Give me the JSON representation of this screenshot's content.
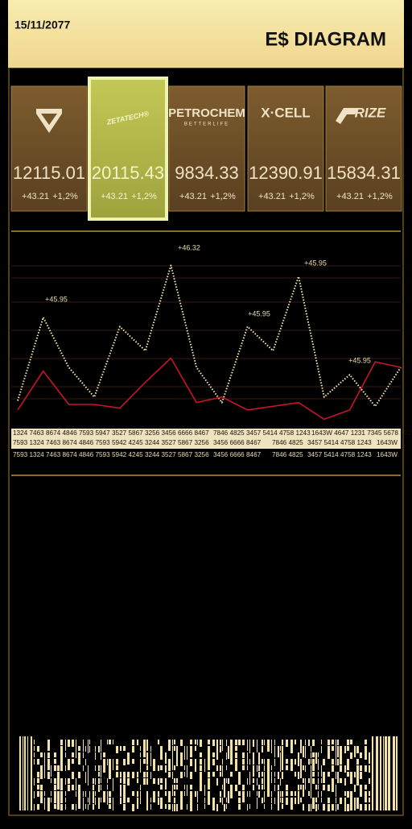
{
  "header": {
    "date": "15/11/2077",
    "title": "E$ DIAGRAM"
  },
  "tickers": [
    {
      "price": "12115.01",
      "change": "+43.21",
      "percent": "+1,2%"
    },
    {
      "logo": "ZETATECH®",
      "price": "20115.43",
      "change": "+43.21",
      "percent": "+1,2%"
    },
    {
      "logo": "PETROCHEM",
      "tagline": "BETTERLIFE",
      "price": "9834.33",
      "change": "+43.21",
      "percent": "+1,2%"
    },
    {
      "logo": "X·CELL",
      "price": "12390.91",
      "change": "+43.21",
      "percent": "+1,2%"
    },
    {
      "logo": "RIZE",
      "price": "15834.31",
      "change": "+43.21",
      "percent": "+1,2%"
    }
  ],
  "chart": {
    "type": "line",
    "ylim": [
      0,
      100
    ],
    "series": [
      {
        "color": "#f3eab0",
        "values": [
          12,
          57,
          30,
          14,
          52,
          39,
          85,
          30,
          11,
          52,
          39,
          79,
          14,
          26,
          9,
          30
        ]
      },
      {
        "color": "#c8142a",
        "values": [
          7,
          28,
          10,
          10,
          8,
          22,
          35,
          11,
          14,
          7,
          9,
          11,
          2,
          7,
          33,
          30
        ]
      }
    ],
    "annotations": [
      "+45.95",
      "+46.32",
      "+45.95",
      "+45.95",
      "+45.95"
    ]
  },
  "number_rows": [
    [
      "1324 7463 8674 4846 7593 5947",
      "3527 5867 3256 3456 6666 8467",
      "7846 4825 3457 5414 4758 1243",
      "1643W 4647 1231 7345 5678 122"
    ],
    [
      "7593 1324 7463 8674 4846 7593",
      "5942 4245 3244 3527 5867 3256",
      "3456 6666 8467",
      "7846 4825",
      "3457 5414 4758 1243",
      "1643W"
    ],
    [
      "7593 1324 7463 8674 4846 7593",
      "5942 4245 3244 3527 5867 3256",
      "3456 6666 8467",
      "7846 4825",
      "3457 5414 4758 1243",
      "1643W"
    ]
  ]
}
